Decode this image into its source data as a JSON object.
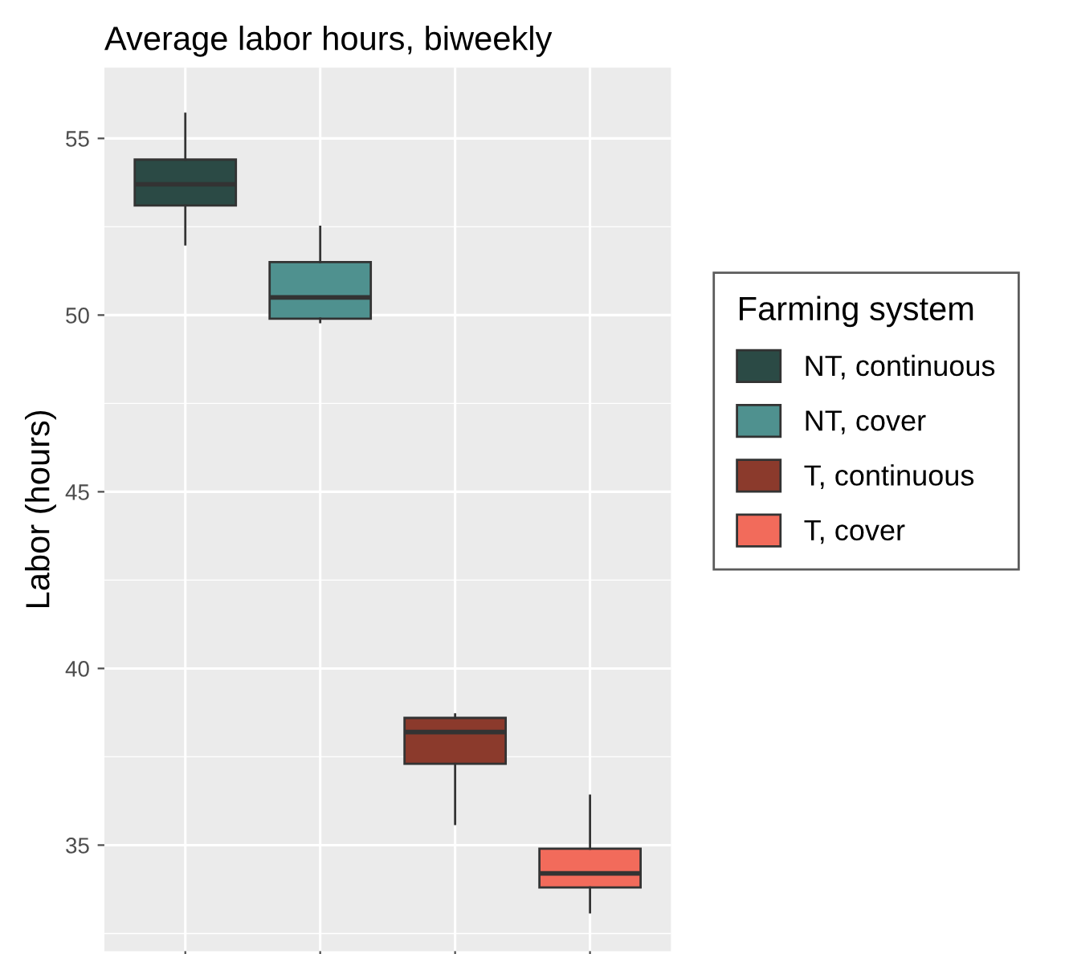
{
  "chart_data": {
    "type": "box",
    "title": "Average labor hours, biweekly",
    "ylabel": "Labor (hours)",
    "legend_title": "Farming system",
    "categories": [
      null,
      null,
      null,
      null
    ],
    "series": [
      {
        "name": "NT, continuous",
        "color": "#2b4a45",
        "boxes": [
          {
            "low": 52.0,
            "q1": 53.1,
            "median": 53.7,
            "q3": 54.4,
            "high": 55.7
          },
          null,
          null,
          null
        ]
      },
      {
        "name": "NT, cover",
        "color": "#4f918f",
        "boxes": [
          null,
          {
            "low": 49.8,
            "q1": 49.9,
            "median": 50.5,
            "q3": 51.5,
            "high": 52.5
          },
          null,
          null
        ]
      },
      {
        "name": "T, continuous",
        "color": "#8b3a2c",
        "boxes": [
          null,
          null,
          {
            "low": 35.6,
            "q1": 37.3,
            "median": 38.2,
            "q3": 38.6,
            "high": 38.7
          },
          null
        ]
      },
      {
        "name": "T, cover",
        "color": "#f26b5b",
        "boxes": [
          null,
          null,
          null,
          {
            "low": 33.1,
            "q1": 33.8,
            "median": 34.2,
            "q3": 34.9,
            "high": 36.4
          }
        ]
      }
    ],
    "ylim": [
      32,
      57
    ],
    "yticks": [
      35,
      40,
      45,
      50,
      55
    ],
    "grid": true,
    "legend": "right"
  }
}
